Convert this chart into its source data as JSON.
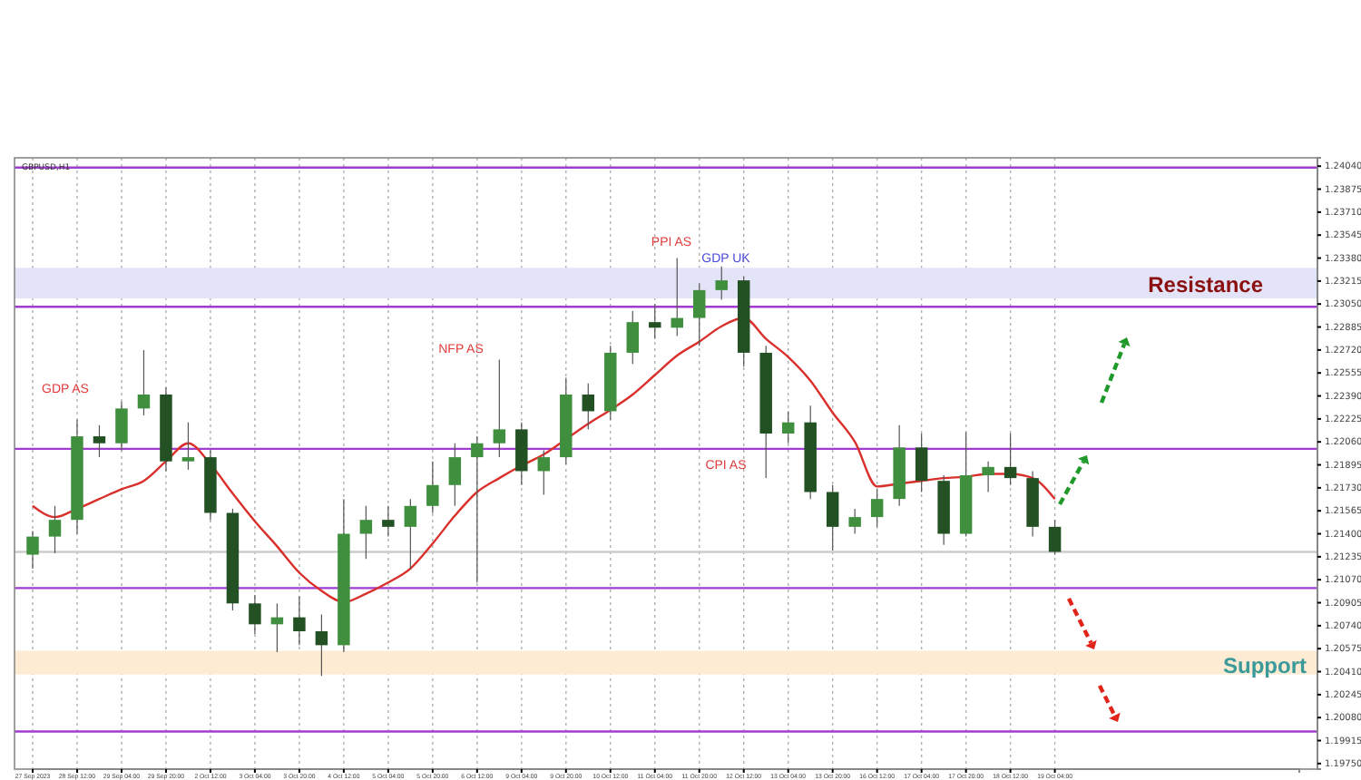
{
  "chart_data": {
    "type": "candlestick",
    "categories": [
      "27 Sep 2023",
      null,
      "28 Sep 12:00",
      null,
      "29 Sep 04:00",
      null,
      "29 Sep 20:00",
      null,
      "2 Oct 12:00",
      null,
      "3 Oct 04:00",
      null,
      "3 Oct 20:00",
      null,
      "4 Oct 12:00",
      null,
      "5 Oct 04:00",
      null,
      "5 Oct 20:00",
      null,
      "6 Oct 12:00",
      null,
      "9 Oct 04:00",
      null,
      "9 Oct 20:00",
      null,
      "10 Oct 12:00",
      null,
      "11 Oct 04:00",
      null,
      "11 Oct 20:00",
      null,
      "12 Oct 12:00",
      null,
      "13 Oct 04:00",
      null,
      "13 Oct 20:00",
      null,
      "16 Oct 12:00",
      null,
      "17 Oct 04:00",
      null,
      "17 Oct 20:00",
      null,
      "18 Oct 12:00",
      null,
      "19 Oct 04:00",
      null,
      null,
      null,
      null,
      null,
      null,
      null,
      null,
      null,
      null,
      null
    ],
    "series": [
      {
        "type": "line",
        "color": "#d9302c",
        "values": [
          1.216,
          1.2152,
          1.2158,
          1.2165,
          1.2172,
          1.2178,
          1.2192,
          1.2205,
          1.219,
          1.2169,
          1.2149,
          1.2131,
          1.2112,
          1.2099,
          1.2091,
          1.2097,
          1.2105,
          1.2115,
          1.2133,
          1.2153,
          1.217,
          1.218,
          1.2189,
          1.2197,
          1.2208,
          1.2219,
          1.2229,
          1.224,
          1.2254,
          1.2268,
          1.2278,
          1.2289,
          1.2295,
          1.228,
          1.2267,
          1.225,
          1.2227,
          1.2206,
          1.2174,
          1.2176,
          1.2178,
          1.218,
          1.2181,
          1.2183,
          1.2183,
          1.218,
          1.2165,
          null,
          null,
          null,
          null,
          null,
          null,
          null,
          null,
          null,
          null,
          null
        ]
      },
      {
        "colors": [
          "#3f8f3f",
          "#3f8f3f",
          "#3f8f3f",
          "#245124",
          "#3f8f3f",
          "#3f8f3f",
          "#245124",
          "#3f8f3f",
          "#245124",
          "#245124",
          "#245124",
          "#3f8f3f",
          "#245124",
          "#245124",
          "#3f8f3f",
          "#3f8f3f",
          "#245124",
          "#3f8f3f",
          "#3f8f3f",
          "#3f8f3f",
          "#3f8f3f",
          "#3f8f3f",
          "#245124",
          "#3f8f3f",
          "#3f8f3f",
          "#245124",
          "#3f8f3f",
          "#3f8f3f",
          "#245124",
          "#3f8f3f",
          "#3f8f3f",
          "#3f8f3f",
          "#245124",
          "#245124",
          "#3f8f3f",
          "#245124",
          "#245124",
          "#3f8f3f",
          "#3f8f3f",
          "#3f8f3f",
          "#245124",
          "#245124",
          "#3f8f3f",
          "#3f8f3f",
          "#245124",
          "#245124",
          "#245124",
          null,
          null,
          null,
          null,
          null,
          null,
          null,
          null,
          null,
          null,
          null
        ],
        "ohlc": [
          [
            1.2125,
            1.2142,
            1.2115,
            1.2138
          ],
          [
            1.2138,
            1.216,
            1.2126,
            1.215
          ],
          [
            1.215,
            1.2222,
            1.214,
            1.221
          ],
          [
            1.221,
            1.2218,
            1.2195,
            1.2205
          ],
          [
            1.2205,
            1.2235,
            1.22,
            1.223
          ],
          [
            1.223,
            1.2272,
            1.2225,
            1.224
          ],
          [
            1.224,
            1.2245,
            1.2185,
            1.2192
          ],
          [
            1.2192,
            1.222,
            1.2186,
            1.2195
          ],
          [
            1.2195,
            1.22,
            1.215,
            1.2155
          ],
          [
            1.2155,
            1.2158,
            1.2085,
            1.209
          ],
          [
            1.209,
            1.2096,
            1.2068,
            1.2075
          ],
          [
            1.2075,
            1.209,
            1.2055,
            1.208
          ],
          [
            1.208,
            1.2095,
            1.206,
            1.207
          ],
          [
            1.207,
            1.2082,
            1.2038,
            1.206
          ],
          [
            1.206,
            1.2165,
            1.2055,
            1.214
          ],
          [
            1.214,
            1.216,
            1.2122,
            1.215
          ],
          [
            1.215,
            1.216,
            1.2138,
            1.2145
          ],
          [
            1.2145,
            1.2165,
            1.2115,
            1.216
          ],
          [
            1.216,
            1.2192,
            1.2155,
            1.2175
          ],
          [
            1.2175,
            1.2205,
            1.216,
            1.2195
          ],
          [
            1.2195,
            1.221,
            1.2105,
            1.2205
          ],
          [
            1.2205,
            1.2265,
            1.2195,
            1.2215
          ],
          [
            1.2215,
            1.222,
            1.2175,
            1.2185
          ],
          [
            1.2185,
            1.22,
            1.2168,
            1.2195
          ],
          [
            1.2195,
            1.2252,
            1.219,
            1.224
          ],
          [
            1.224,
            1.2248,
            1.2215,
            1.2228
          ],
          [
            1.2228,
            1.2275,
            1.2222,
            1.227
          ],
          [
            1.227,
            1.23,
            1.2262,
            1.2292
          ],
          [
            1.2292,
            1.2305,
            1.228,
            1.2288
          ],
          [
            1.2288,
            1.2338,
            1.2282,
            1.2295
          ],
          [
            1.2295,
            1.232,
            1.2275,
            1.2315
          ],
          [
            1.2315,
            1.2332,
            1.2308,
            1.2322
          ],
          [
            1.2322,
            1.2325,
            1.226,
            1.227
          ],
          [
            1.227,
            1.2275,
            1.218,
            1.2212
          ],
          [
            1.2212,
            1.2228,
            1.2205,
            1.222
          ],
          [
            1.222,
            1.2232,
            1.2165,
            1.217
          ],
          [
            1.217,
            1.2175,
            1.2128,
            1.2145
          ],
          [
            1.2145,
            1.2158,
            1.214,
            1.2152
          ],
          [
            1.2152,
            1.2172,
            1.2145,
            1.2165
          ],
          [
            1.2165,
            1.2218,
            1.216,
            1.2202
          ],
          [
            1.2202,
            1.2212,
            1.217,
            1.2178
          ],
          [
            1.2178,
            1.2182,
            1.2132,
            1.214
          ],
          [
            1.214,
            1.2213,
            1.2138,
            1.2182
          ],
          [
            1.2182,
            1.2192,
            1.217,
            1.2188
          ],
          [
            1.2188,
            1.2212,
            1.2175,
            1.218
          ],
          [
            1.218,
            1.2185,
            1.2138,
            1.2145
          ],
          [
            1.2145,
            1.215,
            1.2125,
            1.2127
          ],
          null,
          null,
          null,
          null,
          null,
          null,
          null,
          null,
          null,
          null,
          null
        ]
      }
    ],
    "ylim": [
      1.1971,
      1.241
    ],
    "yticks": [
      {
        "value": 1.1975,
        "label": "1.19750"
      },
      {
        "value": 1.19915,
        "label": "1.19915"
      },
      {
        "value": 1.2008,
        "label": "1.20080"
      },
      {
        "value": 1.20245,
        "label": "1.20245"
      },
      {
        "value": 1.2041,
        "label": "1.20410"
      },
      {
        "value": 1.20575,
        "label": "1.20575"
      },
      {
        "value": 1.2074,
        "label": "1.20740"
      },
      {
        "value": 1.20905,
        "label": "1.20905"
      },
      {
        "value": 1.2107,
        "label": "1.21070"
      },
      {
        "value": 1.21235,
        "label": "1.21235"
      },
      {
        "value": 1.214,
        "label": "1.21400"
      },
      {
        "value": 1.21565,
        "label": "1.21565"
      },
      {
        "value": 1.2173,
        "label": "1.21730"
      },
      {
        "value": 1.21895,
        "label": "1.21895"
      },
      {
        "value": 1.2206,
        "label": "1.22060"
      },
      {
        "value": 1.22225,
        "label": "1.22225"
      },
      {
        "value": 1.2239,
        "label": "1.22390"
      },
      {
        "value": 1.22555,
        "label": "1.22555"
      },
      {
        "value": 1.2272,
        "label": "1.22720"
      },
      {
        "value": 1.22885,
        "label": "1.22885"
      },
      {
        "value": 1.2305,
        "label": "1.23050"
      },
      {
        "value": 1.23215,
        "label": "1.23215"
      },
      {
        "value": 1.2338,
        "label": "1.23380"
      },
      {
        "value": 1.23545,
        "label": "1.23545"
      },
      {
        "value": 1.2371,
        "label": "1.23710"
      },
      {
        "value": 1.23875,
        "label": "1.23875"
      },
      {
        "value": 1.2404,
        "label": "1.24040"
      }
    ],
    "grid": "x",
    "bands": [
      {
        "axis": "y",
        "from": 1.2309,
        "to": 1.2331,
        "color": "#e4e4f8"
      },
      {
        "axis": "y",
        "from": 1.2039,
        "to": 1.2056,
        "color": "#fdebd3"
      }
    ],
    "ref_lines": [
      {
        "axis": "y",
        "value": 1.2403,
        "color": "#a03cd0"
      },
      {
        "axis": "y",
        "value": 1.2303,
        "color": "#a03cd0"
      },
      {
        "axis": "y",
        "value": 1.2201,
        "color": "#a03cd0"
      },
      {
        "axis": "y",
        "value": 1.2101,
        "color": "#a03cd0"
      },
      {
        "axis": "y",
        "value": 1.1998,
        "color": "#a03cd0"
      },
      {
        "axis": "y",
        "value": 1.2127,
        "color": "#cccccc"
      }
    ],
    "annotations": [
      "GBPUSD,H1",
      "GDP AS",
      "NFP AS",
      "PPI AS",
      "GDP UK",
      "CPI AS",
      "Resistance",
      "Support"
    ]
  }
}
